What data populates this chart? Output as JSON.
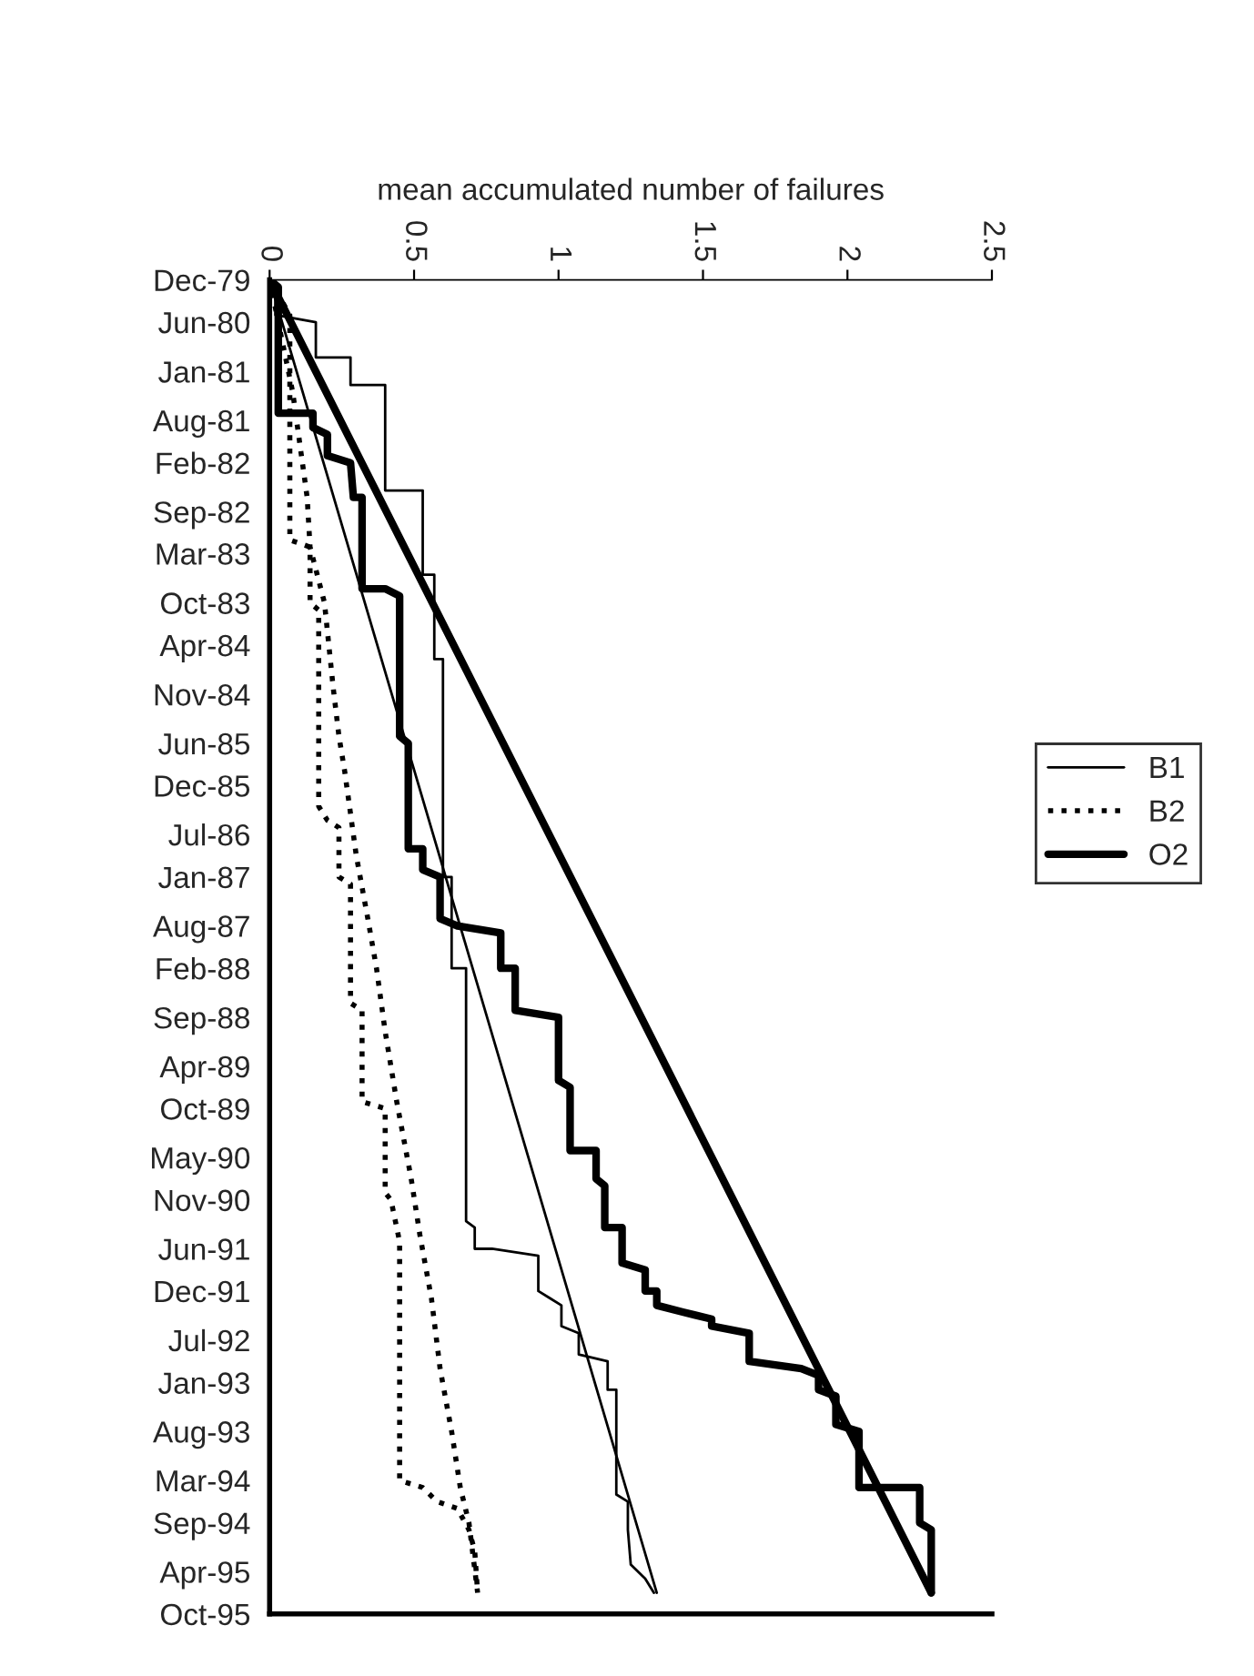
{
  "chart_data": {
    "type": "line",
    "orientation": "horizontal",
    "xlabel": "mean accumulated number of failures",
    "xlim": [
      0,
      2.5
    ],
    "xticks": [
      0,
      0.5,
      1,
      1.5,
      2,
      2.5
    ],
    "ylim": [
      "1995-10",
      "1979-12"
    ],
    "yticks": [
      {
        "value": "1979-12",
        "label": "Dec-79"
      },
      {
        "value": "1980-06",
        "label": "Jun-80"
      },
      {
        "value": "1981-01",
        "label": "Jan-81"
      },
      {
        "value": "1981-08",
        "label": "Aug-81"
      },
      {
        "value": "1982-02",
        "label": "Feb-82"
      },
      {
        "value": "1982-09",
        "label": "Sep-82"
      },
      {
        "value": "1983-03",
        "label": "Mar-83"
      },
      {
        "value": "1983-10",
        "label": "Oct-83"
      },
      {
        "value": "1984-04",
        "label": "Apr-84"
      },
      {
        "value": "1984-11",
        "label": "Nov-84"
      },
      {
        "value": "1985-06",
        "label": "Jun-85"
      },
      {
        "value": "1985-12",
        "label": "Dec-85"
      },
      {
        "value": "1986-07",
        "label": "Jul-86"
      },
      {
        "value": "1987-01",
        "label": "Jan-87"
      },
      {
        "value": "1987-08",
        "label": "Aug-87"
      },
      {
        "value": "1988-02",
        "label": "Feb-88"
      },
      {
        "value": "1988-09",
        "label": "Sep-88"
      },
      {
        "value": "1989-04",
        "label": "Apr-89"
      },
      {
        "value": "1989-10",
        "label": "Oct-89"
      },
      {
        "value": "1990-05",
        "label": "May-90"
      },
      {
        "value": "1990-11",
        "label": "Nov-90"
      },
      {
        "value": "1991-06",
        "label": "Jun-91"
      },
      {
        "value": "1991-12",
        "label": "Dec-91"
      },
      {
        "value": "1992-07",
        "label": "Jul-92"
      },
      {
        "value": "1993-01",
        "label": "Jan-93"
      },
      {
        "value": "1993-08",
        "label": "Aug-93"
      },
      {
        "value": "1994-03",
        "label": "Mar-94"
      },
      {
        "value": "1994-09",
        "label": "Sep-94"
      },
      {
        "value": "1995-04",
        "label": "Apr-95"
      },
      {
        "value": "1995-10",
        "label": "Oct-95"
      }
    ],
    "grid": false,
    "legend": "right",
    "marker": "none",
    "series": [
      {
        "name": "B1",
        "color": "#000000",
        "line_style": "solid",
        "x": [
          "1979-12",
          "1979-12",
          "1980-05",
          "1980-06",
          "1980-11",
          "1980-11",
          "1981-03",
          "1981-03",
          "1982-06",
          "1982-06",
          "1983-06",
          "1983-06",
          "1984-06",
          "1984-06",
          "1987-01",
          "1987-01",
          "1988-02",
          "1988-02",
          "1991-02",
          "1991-03",
          "1991-06",
          "1991-06",
          "1991-07",
          "1991-12",
          "1992-01",
          "1992-02",
          "1992-05",
          "1992-06",
          "1992-09",
          "1992-10",
          "1993-02",
          "1993-02",
          "1994-05",
          "1994-06",
          "1994-10",
          "1995-03",
          "1995-05",
          "1995-07"
        ],
        "values": [
          0,
          0.02,
          0.02,
          0.16,
          0.16,
          0.28,
          0.28,
          0.4,
          0.4,
          0.53,
          0.53,
          0.57,
          0.57,
          0.6,
          0.6,
          0.63,
          0.63,
          0.68,
          0.68,
          0.71,
          0.71,
          0.77,
          0.93,
          0.93,
          0.97,
          1.01,
          1.01,
          1.07,
          1.07,
          1.17,
          1.17,
          1.2,
          1.2,
          1.24,
          1.24,
          1.25,
          1.3,
          1.33
        ]
      },
      {
        "name": "B2",
        "color": "#000000",
        "line_style": "dotted",
        "x": [
          "1979-12",
          "1980-05",
          "1983-01",
          "1983-02",
          "1983-10",
          "1983-11",
          "1986-03",
          "1986-05",
          "1986-06",
          "1987-01",
          "1987-02",
          "1988-07",
          "1988-08",
          "1989-09",
          "1989-10",
          "1990-10",
          "1990-11",
          "1991-05",
          "1994-03",
          "1994-04",
          "1994-06",
          "1994-07",
          "1994-10",
          "1995-01",
          "1995-07"
        ],
        "values": [
          0,
          0.07,
          0.07,
          0.14,
          0.14,
          0.17,
          0.17,
          0.2,
          0.24,
          0.24,
          0.28,
          0.28,
          0.32,
          0.32,
          0.4,
          0.4,
          0.42,
          0.45,
          0.45,
          0.53,
          0.58,
          0.65,
          0.69,
          0.71,
          0.72
        ]
      },
      {
        "name": "O2",
        "color": "#000000",
        "line_style": "solid",
        "x": [
          "1979-12",
          "1980-01",
          "1981-07",
          "1981-07",
          "1981-09",
          "1981-10",
          "1982-01",
          "1982-02",
          "1982-07",
          "1982-07",
          "1983-08",
          "1983-08",
          "1983-09",
          "1985-05",
          "1985-06",
          "1986-09",
          "1986-09",
          "1986-12",
          "1987-01",
          "1987-07",
          "1987-08",
          "1987-09",
          "1988-02",
          "1988-02",
          "1988-08",
          "1988-09",
          "1989-06",
          "1989-07",
          "1990-04",
          "1990-04",
          "1990-08",
          "1990-09",
          "1991-03",
          "1991-03",
          "1991-08",
          "1991-09",
          "1991-12",
          "1991-12",
          "1992-02",
          "1992-03",
          "1992-04",
          "1992-05",
          "1992-06",
          "1992-10",
          "1992-11",
          "1992-12",
          "1993-02",
          "1993-03",
          "1993-07",
          "1993-08",
          "1994-04",
          "1994-04",
          "1994-09",
          "1994-10",
          "1995-07"
        ],
        "values": [
          0,
          0.03,
          0.03,
          0.15,
          0.15,
          0.2,
          0.2,
          0.28,
          0.29,
          0.32,
          0.32,
          0.4,
          0.45,
          0.45,
          0.48,
          0.48,
          0.53,
          0.53,
          0.59,
          0.59,
          0.65,
          0.8,
          0.8,
          0.85,
          0.85,
          1.0,
          1.0,
          1.04,
          1.04,
          1.13,
          1.13,
          1.16,
          1.16,
          1.22,
          1.22,
          1.3,
          1.3,
          1.34,
          1.34,
          1.43,
          1.53,
          1.53,
          1.66,
          1.66,
          1.84,
          1.9,
          1.9,
          1.96,
          1.96,
          2.04,
          2.04,
          2.25,
          2.25,
          2.29,
          2.29
        ]
      },
      {
        "color": "#000000",
        "line_style": "solid",
        "x": [
          "1979-12",
          "1995-07"
        ],
        "values": [
          0,
          1.34
        ]
      },
      {
        "color": "#000000",
        "line_style": "dotted",
        "x": [
          "1979-12",
          "1981-04",
          "1982-07",
          "1983-02",
          "1983-10",
          "1984-10",
          "1985-05",
          "1985-10",
          "1986-10",
          "1987-07",
          "1988-02",
          "1988-11",
          "1989-09",
          "1990-08",
          "1991-04",
          "1992-01",
          "1992-11",
          "1993-08",
          "1994-04",
          "1994-09",
          "1995-07"
        ],
        "values": [
          0,
          0.08,
          0.13,
          0.14,
          0.19,
          0.22,
          0.24,
          0.26,
          0.3,
          0.34,
          0.37,
          0.4,
          0.44,
          0.49,
          0.52,
          0.56,
          0.59,
          0.63,
          0.66,
          0.69,
          0.72
        ]
      },
      {
        "color": "#000000",
        "line_style": "solid",
        "x": [
          "1979-12",
          "1995-07"
        ],
        "values": [
          0,
          2.29
        ]
      }
    ]
  }
}
